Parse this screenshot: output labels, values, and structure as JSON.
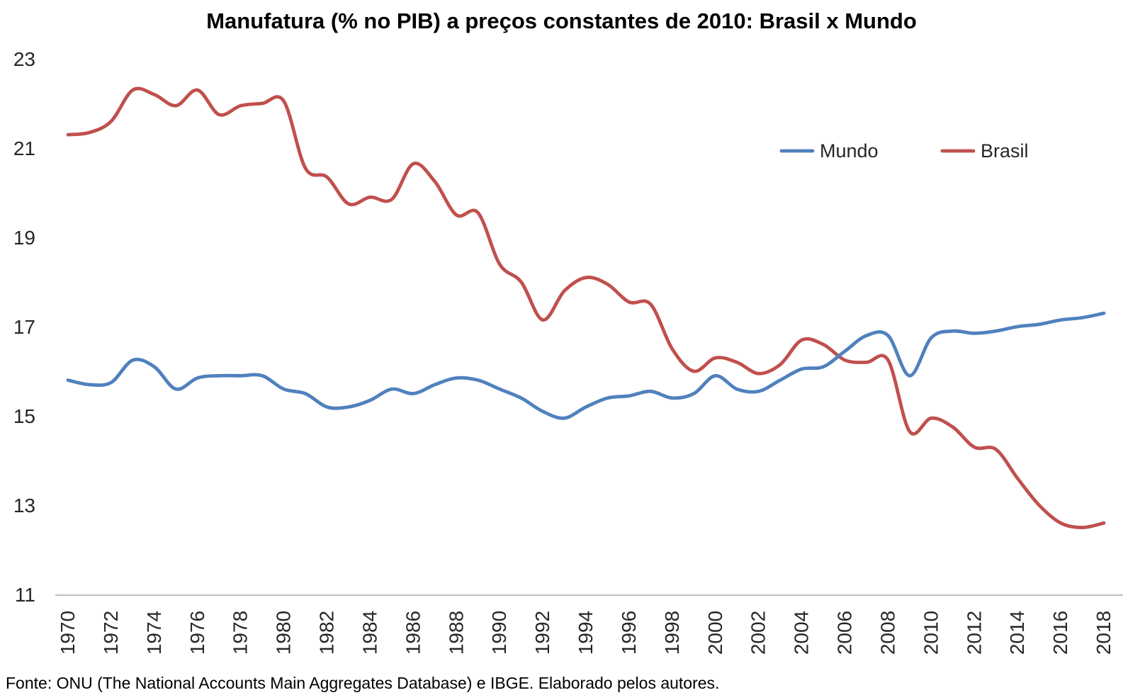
{
  "title": "Manufatura (% no PIB) a preços constantes de 2010: Brasil x Mundo",
  "footer": "Fonte: ONU (The National Accounts Main Aggregates Database) e IBGE. Elaborado pelos autores.",
  "colors": {
    "mundo_line": "#4F81BD",
    "brasil_line": "#C0504D",
    "axis_line": "#BFBFBF",
    "tick_label": "#262626",
    "title_text": "#000000"
  },
  "chart_data": {
    "type": "line",
    "smooth": true,
    "grid": false,
    "title": "Manufatura (% no PIB) a preços constantes de 2010: Brasil x Mundo",
    "xlabel": "",
    "ylabel": "",
    "ylim": [
      11,
      23
    ],
    "yticks": [
      23,
      21,
      19,
      17,
      15,
      13,
      11
    ],
    "xtick_years": [
      1970,
      1972,
      1974,
      1976,
      1978,
      1980,
      1982,
      1984,
      1986,
      1988,
      1990,
      1992,
      1994,
      1996,
      1998,
      2000,
      2002,
      2004,
      2006,
      2008,
      2010,
      2012,
      2014,
      2016,
      2018
    ],
    "years": [
      1970,
      1971,
      1972,
      1973,
      1974,
      1975,
      1976,
      1977,
      1978,
      1979,
      1980,
      1981,
      1982,
      1983,
      1984,
      1985,
      1986,
      1987,
      1988,
      1989,
      1990,
      1991,
      1992,
      1993,
      1994,
      1995,
      1996,
      1997,
      1998,
      1999,
      2000,
      2001,
      2002,
      2003,
      2004,
      2005,
      2006,
      2007,
      2008,
      2009,
      2010,
      2011,
      2012,
      2013,
      2014,
      2015,
      2016,
      2017,
      2018
    ],
    "series": [
      {
        "name": "Mundo",
        "color": "#4F81BD",
        "values": [
          15.8,
          15.7,
          15.75,
          16.25,
          16.1,
          15.6,
          15.85,
          15.9,
          15.9,
          15.9,
          15.6,
          15.5,
          15.2,
          15.2,
          15.35,
          15.6,
          15.5,
          15.7,
          15.85,
          15.8,
          15.6,
          15.4,
          15.1,
          14.95,
          15.2,
          15.4,
          15.45,
          15.55,
          15.4,
          15.5,
          15.9,
          15.6,
          15.55,
          15.8,
          16.05,
          16.1,
          16.45,
          16.8,
          16.8,
          15.9,
          16.75,
          16.9,
          16.85,
          16.9,
          17.0,
          17.05,
          17.15,
          17.2,
          17.3
        ]
      },
      {
        "name": "Brasil",
        "color": "#C0504D",
        "values": [
          21.3,
          21.35,
          21.6,
          22.3,
          22.2,
          21.95,
          22.3,
          21.75,
          21.95,
          22.0,
          22.05,
          20.55,
          20.35,
          19.75,
          19.9,
          19.85,
          20.65,
          20.25,
          19.5,
          19.55,
          18.4,
          18.0,
          17.15,
          17.8,
          18.1,
          17.95,
          17.55,
          17.5,
          16.5,
          16.0,
          16.3,
          16.2,
          15.95,
          16.15,
          16.7,
          16.6,
          16.25,
          16.2,
          16.25,
          14.65,
          14.95,
          14.75,
          14.3,
          14.25,
          13.6,
          13.0,
          12.6,
          12.5,
          12.6
        ]
      }
    ],
    "legend": {
      "position": "inside-top-right",
      "entries": [
        "Mundo",
        "Brasil"
      ]
    }
  }
}
